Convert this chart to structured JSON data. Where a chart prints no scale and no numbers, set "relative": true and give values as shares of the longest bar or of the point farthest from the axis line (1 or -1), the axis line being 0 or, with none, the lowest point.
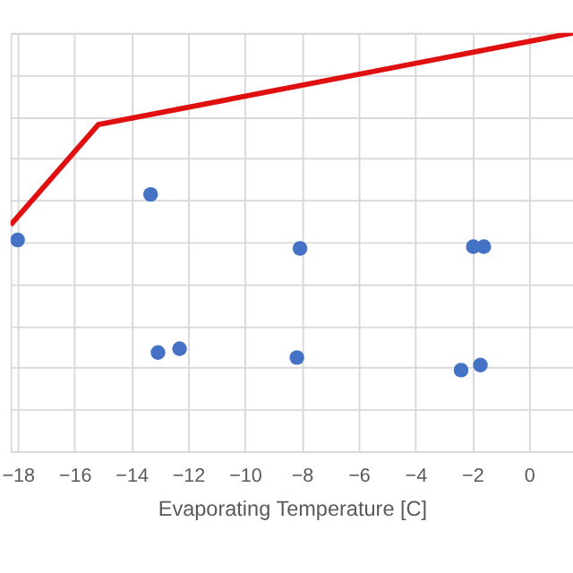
{
  "chart_data": {
    "type": "scatter",
    "xlabel": "Evaporating Temperature [C]",
    "relative": true,
    "grid": true,
    "xlim": [
      -18.25,
      1.55
    ],
    "xticks": [
      -18,
      -16,
      -14,
      -12,
      -10,
      -8,
      -6,
      -4,
      -2,
      0
    ],
    "series": [
      {
        "type": "line",
        "color": "#e01010",
        "marker": "none",
        "line_style": "solid",
        "x": [
          -18.25,
          -15.16,
          1.55
        ],
        "values": [
          0.541,
          0.781,
          1.0
        ]
      },
      {
        "color": "#4472c4",
        "marker": "circle",
        "x": [
          -18.0,
          -13.32,
          -8.06,
          -1.96,
          -1.59,
          -13.06,
          -12.3,
          -8.17,
          -2.39,
          -1.71
        ],
        "values": [
          0.505,
          0.614,
          0.485,
          0.489,
          0.489,
          0.236,
          0.245,
          0.224,
          0.194,
          0.206
        ]
      }
    ]
  }
}
